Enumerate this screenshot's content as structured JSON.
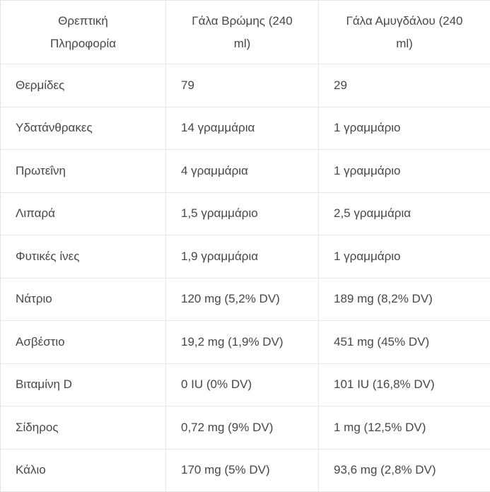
{
  "chart_data": {
    "type": "table",
    "title": "",
    "columns": [
      "Θρεπτική Πληροφορία",
      "Γάλα Βρώμης (240 ml)",
      "Γάλα Αμυγδάλου (240 ml)"
    ],
    "rows": [
      [
        "Θερμίδες",
        "79",
        "29"
      ],
      [
        "Υδατάνθρακες",
        "14 γραμμάρια",
        "1 γραμμάριο"
      ],
      [
        "Πρωτεΐνη",
        "4 γραμμάρια",
        "1 γραμμάριο"
      ],
      [
        "Λιπαρά",
        "1,5 γραμμάριο",
        "2,5 γραμμάρια"
      ],
      [
        "Φυτικές ίνες",
        "1,9 γραμμάρια",
        "1 γραμμάριο"
      ],
      [
        "Νάτριο",
        "120 mg (5,2% DV)",
        "189 mg (8,2% DV)"
      ],
      [
        "Ασβέστιο",
        "19,2 mg (1,9% DV)",
        "451 mg (45% DV)"
      ],
      [
        "Βιταμίνη D",
        "0 IU (0% DV)",
        "101 IU (16,8% DV)"
      ],
      [
        "Σίδηρος",
        "0,72 mg (9% DV)",
        "1 mg (12,5% DV)"
      ],
      [
        "Κάλιο",
        "170 mg (5% DV)",
        "93,6 mg (2,8% DV)"
      ]
    ],
    "layout": {
      "grid": "full-borders",
      "header_align": "center",
      "body_align": "left"
    }
  },
  "header_display": {
    "nutrient": "Θρεπτική\nΠληροφορία",
    "oat": "Γάλα Βρώμης (240\nml)",
    "almond": "Γάλα Αμυγδάλου (240\nml)"
  },
  "colors": {
    "border": "#e3e7e9",
    "text": "#45484b",
    "background": "#ffffff"
  }
}
